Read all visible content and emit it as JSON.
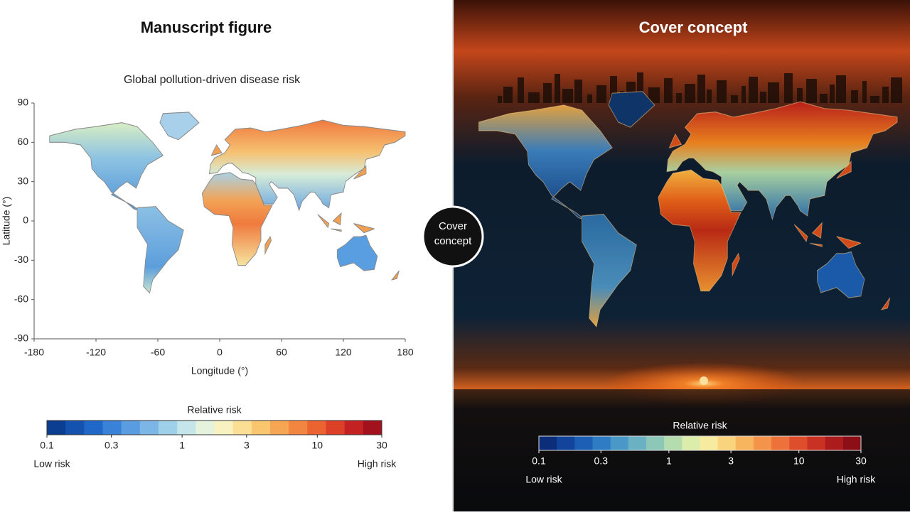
{
  "left": {
    "heading": "Manuscript figure",
    "title": "Global pollution-driven disease risk",
    "x_label": "Longitude (°)",
    "y_label": "Latitude (°)",
    "xlim": [
      -180,
      180
    ],
    "ylim": [
      -90,
      90
    ],
    "xticks": [
      -180,
      -120,
      -60,
      0,
      60,
      120,
      180
    ],
    "yticks": [
      90,
      60,
      30,
      0,
      -30,
      -60,
      -90
    ],
    "colorbar": {
      "title": "Relative risk",
      "log_scale": true,
      "ticks": [
        0.1,
        0.3,
        1,
        3,
        10,
        30
      ],
      "low_label": "Low risk",
      "high_label": "High risk",
      "colors": [
        "#0b3d91",
        "#1552b0",
        "#2068c8",
        "#3a82d8",
        "#5a9ce0",
        "#7cb6e6",
        "#9fd0ea",
        "#c4e6ea",
        "#e6f3dc",
        "#f8f1c0",
        "#fbdf94",
        "#f9c56e",
        "#f6a652",
        "#f2853f",
        "#ea6331",
        "#dc4128",
        "#c42222",
        "#a3121c"
      ]
    }
  },
  "badge": "Cover concept",
  "right": {
    "heading": "Cover concept",
    "colorbar": {
      "title": "Relative risk",
      "log_scale": true,
      "ticks": [
        0.1,
        0.3,
        1,
        3,
        10,
        30
      ],
      "low_label": "Low risk",
      "high_label": "High risk",
      "colors": [
        "#0b2d7a",
        "#13449c",
        "#1d5fb4",
        "#2f7cc4",
        "#4a98c8",
        "#6ab1c4",
        "#8cc7b8",
        "#b4dcae",
        "#dcecaa",
        "#f7eba0",
        "#f9d37e",
        "#f7b55e",
        "#f3944a",
        "#ec713a",
        "#df4e2c",
        "#c93222",
        "#ad1c1c",
        "#8c0f18"
      ]
    }
  }
}
